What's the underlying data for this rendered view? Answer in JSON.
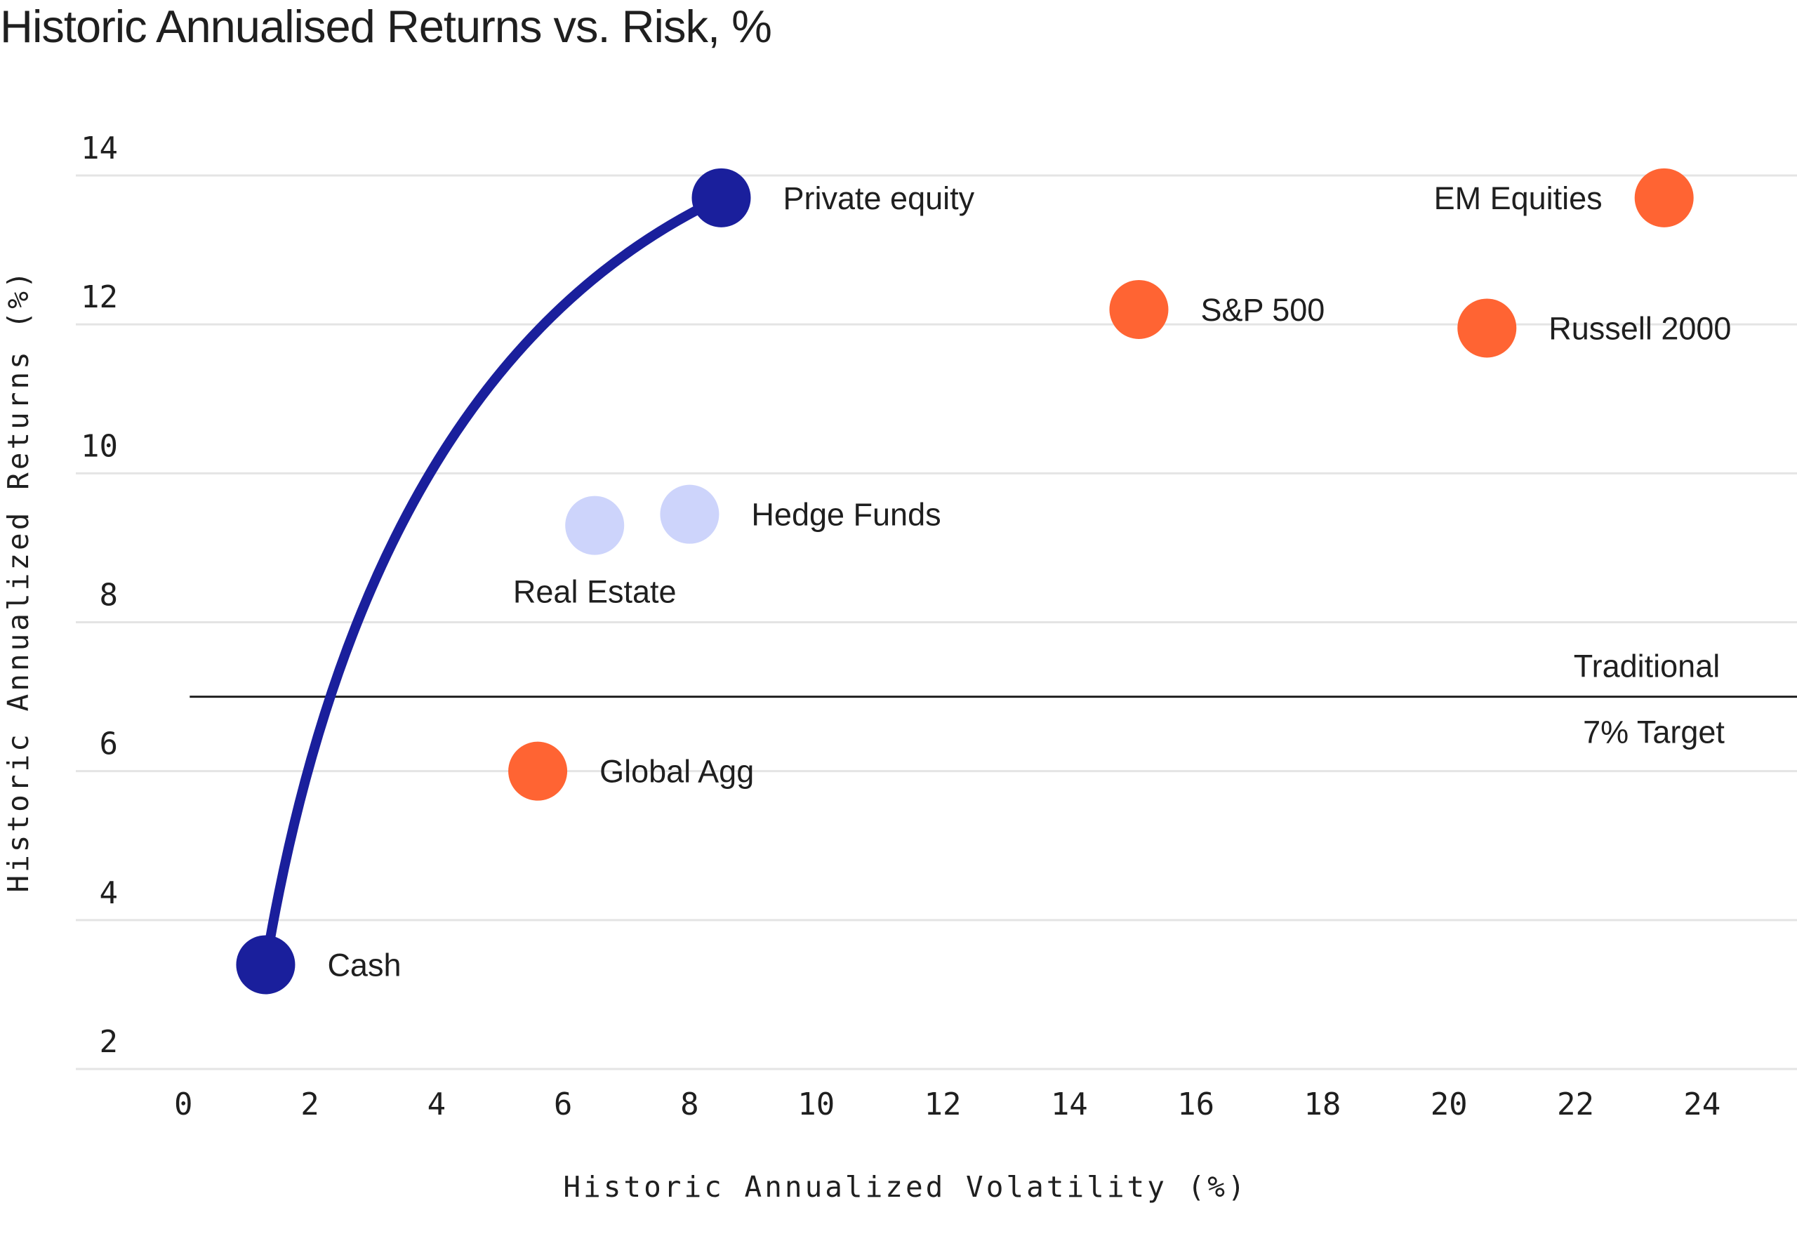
{
  "chart_data": {
    "type": "scatter",
    "title": "Historic Annualised Returns vs. Risk, %",
    "xlabel": "Historic Annualized Volatility (%)",
    "ylabel": "Historic Annualized Returns (%)",
    "xlim": [
      -1.7,
      25.5
    ],
    "ylim": [
      2,
      14
    ],
    "xticks": [
      "0",
      "2",
      "4",
      "6",
      "8",
      "10",
      "12",
      "14",
      "16",
      "18",
      "20",
      "22",
      "24"
    ],
    "yticks": [
      "2",
      "4",
      "6",
      "8",
      "10",
      "12",
      "14"
    ],
    "grid": "horizontal",
    "points": [
      {
        "label": "Cash",
        "x": 1.3,
        "y": 3.4,
        "color": "#1a1f9c",
        "label_pos": "right"
      },
      {
        "label": "Private equity",
        "x": 8.5,
        "y": 13.7,
        "color": "#1a1f9c",
        "label_pos": "right"
      },
      {
        "label": "Global Agg",
        "x": 5.6,
        "y": 6.0,
        "color": "#ff6433",
        "label_pos": "right"
      },
      {
        "label": "Real Estate",
        "x": 6.5,
        "y": 9.3,
        "color": "#cdd4fb",
        "label_pos": "below"
      },
      {
        "label": "Hedge Funds",
        "x": 8.0,
        "y": 9.45,
        "color": "#cdd4fb",
        "label_pos": "right"
      },
      {
        "label": "S&P 500",
        "x": 15.1,
        "y": 12.2,
        "color": "#ff6433",
        "label_pos": "right"
      },
      {
        "label": "Russell 2000",
        "x": 20.6,
        "y": 11.95,
        "color": "#ff6433",
        "label_pos": "right"
      },
      {
        "label": "EM Equities",
        "x": 23.4,
        "y": 13.7,
        "color": "#ff6433",
        "label_pos": "left"
      }
    ],
    "curve": {
      "color": "#1a1f9c",
      "from": "Cash",
      "to": "Private equity"
    },
    "reference_line": {
      "y": 7.0,
      "x_start": 0.1,
      "label_top": "Traditional",
      "label_bottom": "7% Target",
      "color": "#1f1f1f"
    }
  }
}
